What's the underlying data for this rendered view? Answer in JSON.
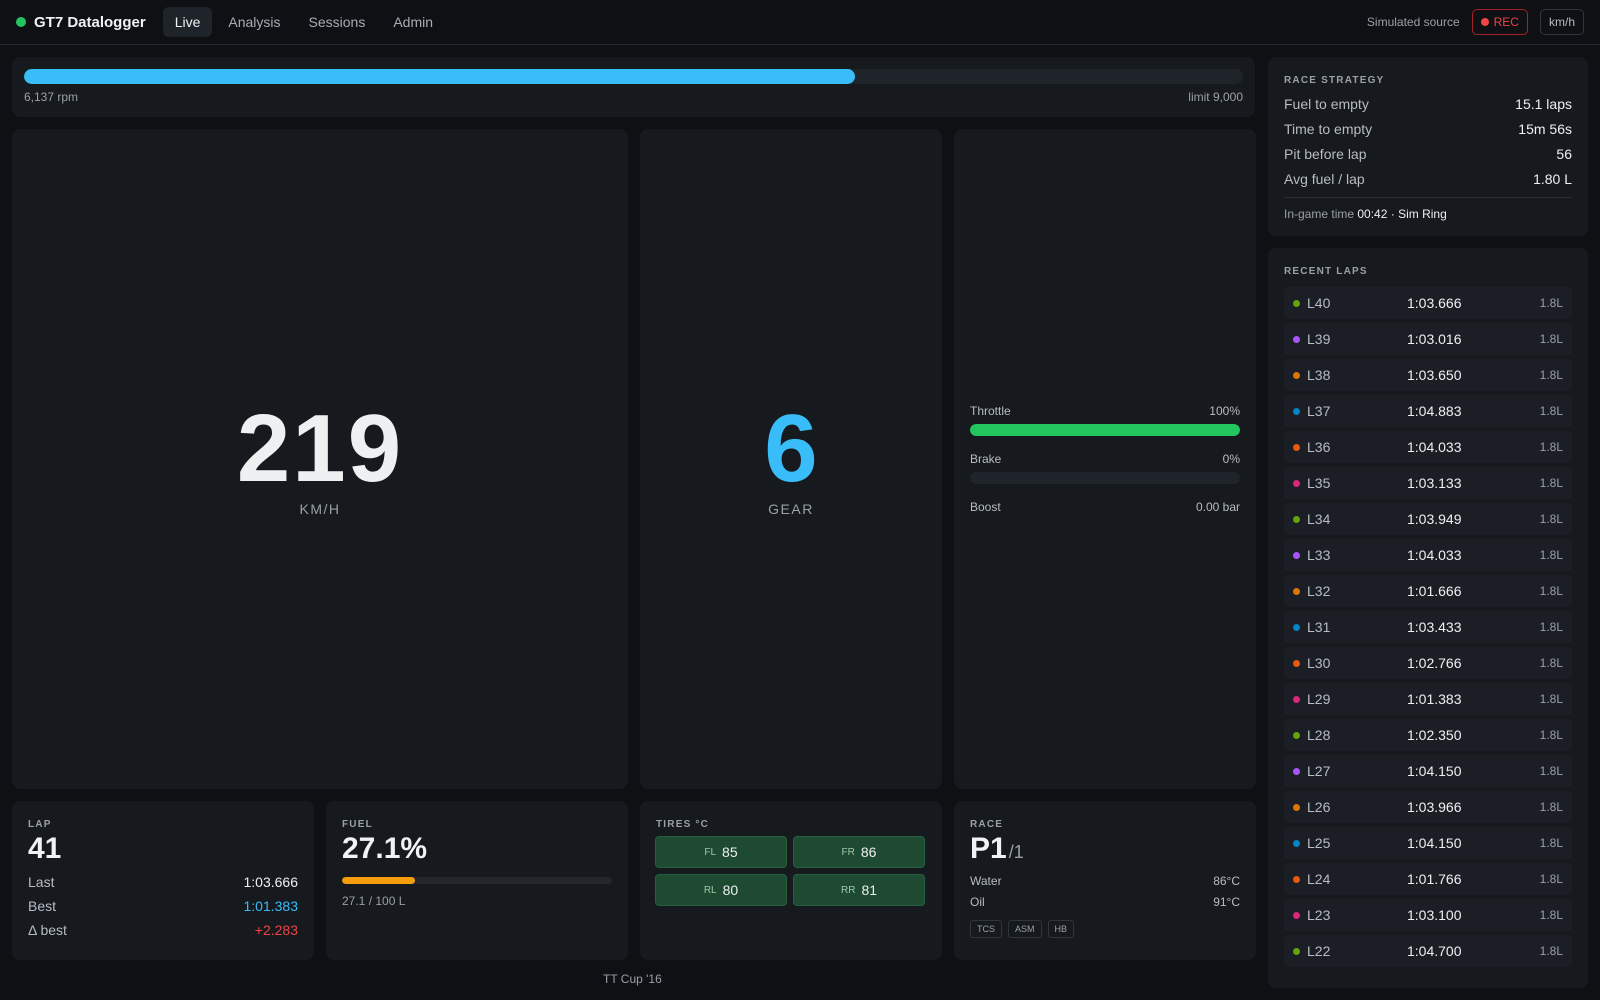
{
  "app": {
    "title": "GT7 Datalogger"
  },
  "nav": {
    "items": [
      "Live",
      "Analysis",
      "Sessions",
      "Admin"
    ]
  },
  "topbar": {
    "source": "Simulated source",
    "rec": "REC",
    "unit": "km/h"
  },
  "rpm": {
    "current": "6,137 rpm",
    "limit": "limit 9,000",
    "fraction": 0.682
  },
  "speed": {
    "value": "219",
    "unit": "KM/H"
  },
  "gear": {
    "value": "6",
    "label": "GEAR"
  },
  "pedals": {
    "throttle": {
      "label": "Throttle",
      "value": "100%",
      "fraction": 1.0
    },
    "brake": {
      "label": "Brake",
      "value": "0%",
      "fraction": 0.0
    },
    "boost": {
      "label": "Boost",
      "value": "0.00 bar"
    }
  },
  "lap_card": {
    "title": "LAP",
    "number": "41",
    "last_label": "Last",
    "last": "1:03.666",
    "best_label": "Best",
    "best": "1:01.383",
    "delta_label": "Δ best",
    "delta": "+2.283"
  },
  "fuel_card": {
    "title": "FUEL",
    "percent": "27.1%",
    "detail": "27.1 / 100 L",
    "fraction": 0.271
  },
  "tires_card": {
    "title": "TIRES °C",
    "tires": [
      {
        "label": "FL",
        "value": "85"
      },
      {
        "label": "FR",
        "value": "86"
      },
      {
        "label": "RL",
        "value": "80"
      },
      {
        "label": "RR",
        "value": "81"
      }
    ]
  },
  "race_card": {
    "title": "RACE",
    "position": "P1",
    "of": "/1",
    "water_label": "Water",
    "water": "86°C",
    "oil_label": "Oil",
    "oil": "91°C",
    "aids": [
      "TCS",
      "ASM",
      "HB"
    ]
  },
  "footer": {
    "car": "TT Cup '16"
  },
  "strategy": {
    "title": "RACE STRATEGY",
    "rows": [
      {
        "label": "Fuel to empty",
        "value": "15.1 laps"
      },
      {
        "label": "Time to empty",
        "value": "15m 56s"
      },
      {
        "label": "Pit before lap",
        "value": "56"
      },
      {
        "label": "Avg fuel / lap",
        "value": "1.80 L"
      }
    ],
    "ingame_label": "In-game time",
    "ingame_time": "00:42",
    "track": "· Sim Ring"
  },
  "recent_laps": {
    "title": "RECENT LAPS",
    "laps": [
      {
        "lap": "L40",
        "time": "1:03.666",
        "fuel": "1.8L",
        "color": "#65a30d"
      },
      {
        "lap": "L39",
        "time": "1:03.016",
        "fuel": "1.8L",
        "color": "#a855f7"
      },
      {
        "lap": "L38",
        "time": "1:03.650",
        "fuel": "1.8L",
        "color": "#d97706"
      },
      {
        "lap": "L37",
        "time": "1:04.883",
        "fuel": "1.8L",
        "color": "#0284c7"
      },
      {
        "lap": "L36",
        "time": "1:04.033",
        "fuel": "1.8L",
        "color": "#ea580c"
      },
      {
        "lap": "L35",
        "time": "1:03.133",
        "fuel": "1.8L",
        "color": "#db2777"
      },
      {
        "lap": "L34",
        "time": "1:03.949",
        "fuel": "1.8L",
        "color": "#65a30d"
      },
      {
        "lap": "L33",
        "time": "1:04.033",
        "fuel": "1.8L",
        "color": "#a855f7"
      },
      {
        "lap": "L32",
        "time": "1:01.666",
        "fuel": "1.8L",
        "color": "#d97706"
      },
      {
        "lap": "L31",
        "time": "1:03.433",
        "fuel": "1.8L",
        "color": "#0284c7"
      },
      {
        "lap": "L30",
        "time": "1:02.766",
        "fuel": "1.8L",
        "color": "#ea580c"
      },
      {
        "lap": "L29",
        "time": "1:01.383",
        "fuel": "1.8L",
        "color": "#db2777"
      },
      {
        "lap": "L28",
        "time": "1:02.350",
        "fuel": "1.8L",
        "color": "#65a30d"
      },
      {
        "lap": "L27",
        "time": "1:04.150",
        "fuel": "1.8L",
        "color": "#a855f7"
      },
      {
        "lap": "L26",
        "time": "1:03.966",
        "fuel": "1.8L",
        "color": "#d97706"
      },
      {
        "lap": "L25",
        "time": "1:04.150",
        "fuel": "1.8L",
        "color": "#0284c7"
      },
      {
        "lap": "L24",
        "time": "1:01.766",
        "fuel": "1.8L",
        "color": "#ea580c"
      },
      {
        "lap": "L23",
        "time": "1:03.100",
        "fuel": "1.8L",
        "color": "#db2777"
      },
      {
        "lap": "L22",
        "time": "1:04.700",
        "fuel": "1.8L",
        "color": "#65a30d"
      }
    ]
  },
  "colors": {
    "accent": "#38bdf8",
    "throttle": "#22c55e",
    "fuel": "#f59e0b",
    "delta": "#ef4444",
    "best": "#38bdf8",
    "rec": "#ef4444"
  }
}
